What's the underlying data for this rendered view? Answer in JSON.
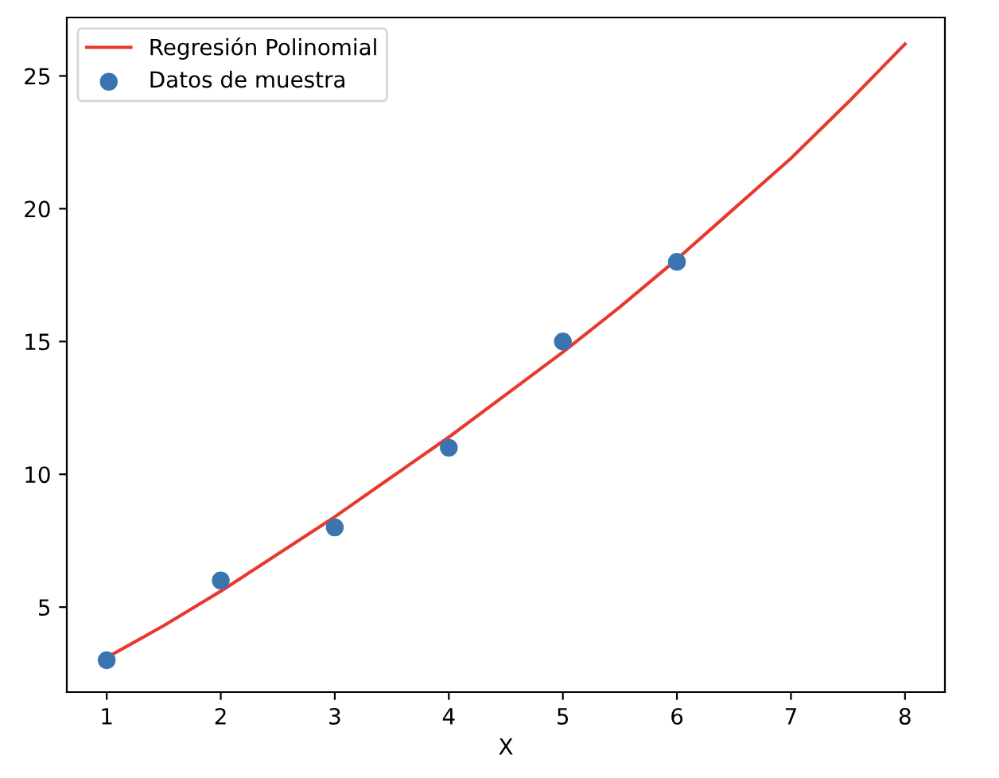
{
  "chart_data": {
    "type": "scatter",
    "xlabel": "X",
    "series": [
      {
        "name": "Regresión Polinomial",
        "type": "line",
        "color": "#e8392f",
        "x": [
          1,
          1.5,
          2,
          2.5,
          3,
          3.5,
          4,
          4.5,
          5,
          5.5,
          6,
          6.5,
          7,
          7.5,
          8
        ],
        "values": [
          3.1,
          4.3,
          5.6,
          7.0,
          8.4,
          9.9,
          11.4,
          13.0,
          14.6,
          16.3,
          18.1,
          20.0,
          21.9,
          24.0,
          26.2
        ]
      },
      {
        "name": "Datos de muestra",
        "color": "#3a75b0",
        "x": [
          1,
          2,
          3,
          4,
          5,
          6
        ],
        "values": [
          3,
          6,
          8,
          11,
          15,
          18
        ]
      }
    ],
    "xlim": [
      0.65,
      8.35
    ],
    "ylim": [
      1.8,
      27.2
    ],
    "xticks": [
      1,
      2,
      3,
      4,
      5,
      6,
      7,
      8
    ],
    "yticks": [
      5,
      10,
      15,
      20,
      25
    ],
    "grid": false,
    "legend": "top left"
  }
}
